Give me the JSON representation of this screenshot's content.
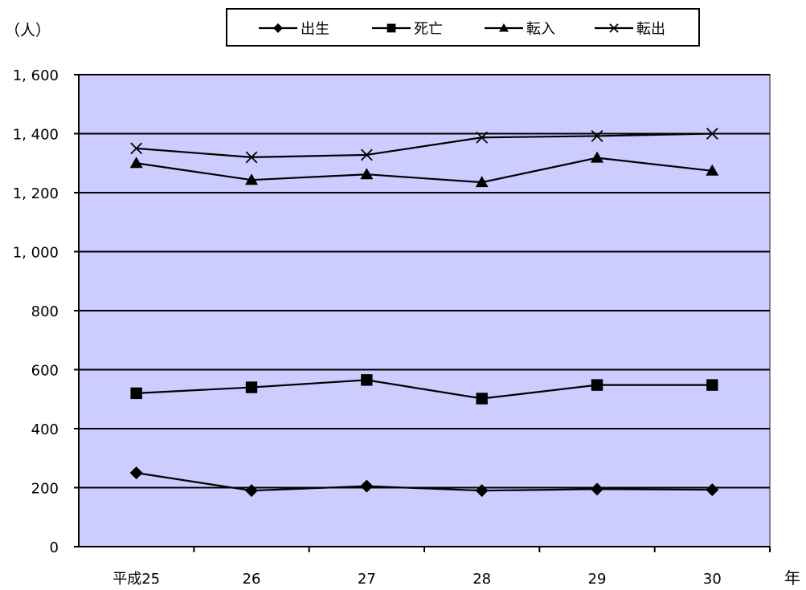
{
  "chart_data": {
    "type": "line",
    "ylabel": "（人）",
    "xlabel": "年",
    "categories": [
      "平成25",
      "26",
      "27",
      "28",
      "29",
      "30"
    ],
    "ylim": [
      0,
      1600
    ],
    "yticks": [
      0,
      200,
      400,
      600,
      800,
      1000,
      1200,
      1400,
      1600
    ],
    "ytick_labels": [
      "0",
      "200",
      "400",
      "600",
      "800",
      "1, 000",
      "1, 200",
      "1, 400",
      "1, 600"
    ],
    "grid": true,
    "legend_position": "top",
    "colors": {
      "plot_bg": "#ccccff",
      "line": "#000000"
    },
    "series": [
      {
        "name": "出生",
        "marker": "diamond",
        "values": [
          250,
          190,
          205,
          190,
          195,
          193
        ]
      },
      {
        "name": "死亡",
        "marker": "square",
        "values": [
          520,
          540,
          565,
          502,
          548,
          548
        ]
      },
      {
        "name": "転入",
        "marker": "triangle",
        "values": [
          1300,
          1243,
          1262,
          1235,
          1318,
          1274
        ]
      },
      {
        "name": "転出",
        "marker": "x",
        "values": [
          1350,
          1320,
          1328,
          1387,
          1392,
          1400
        ]
      }
    ]
  }
}
